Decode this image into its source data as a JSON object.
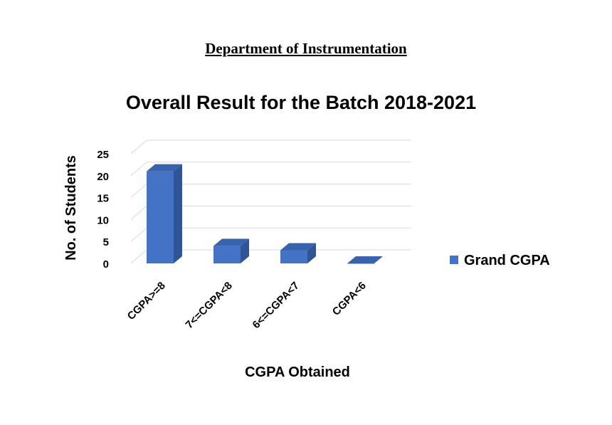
{
  "header": {
    "department": "Department of Instrumentation"
  },
  "chart_data": {
    "type": "bar",
    "title": "Overall Result for the Batch 2018-2021",
    "xlabel": "CGPA Obtained",
    "ylabel": "No. of Students",
    "categories": [
      "CGPA>=8",
      "7<=CGPA<8",
      "6<=CGPA<7",
      "CGPA<6"
    ],
    "series": [
      {
        "name": "Grand CGPA",
        "values": [
          21,
          4,
          3,
          0
        ]
      }
    ],
    "ylim": [
      0,
      25
    ],
    "yticks": [
      0,
      5,
      10,
      15,
      20,
      25
    ],
    "grid": true,
    "legend_position": "right",
    "colors": {
      "front": "#4472C4",
      "side": "#2F5597",
      "top": "#3A63AD",
      "grid": "#D9D9D9"
    }
  }
}
